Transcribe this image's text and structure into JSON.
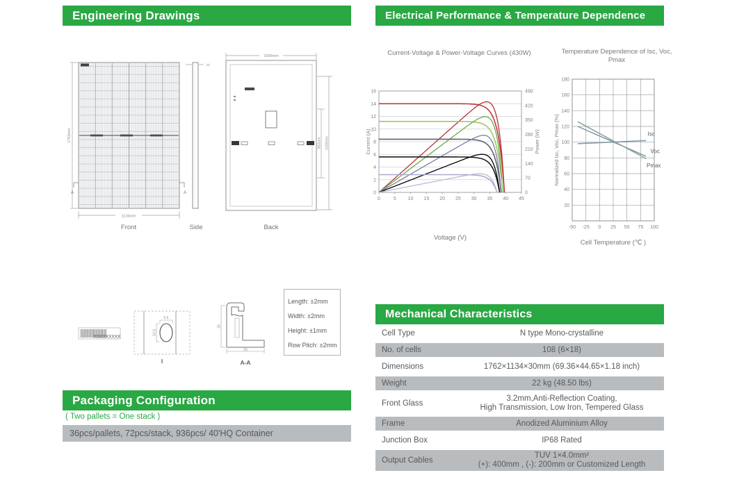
{
  "colors": {
    "accent_green": "#29a844",
    "row_gray": "#b9bcbe",
    "text_gray": "#58595b",
    "chart_text": "#808285",
    "axis_gray": "#9da1a5",
    "grid_gray": "#cdd0d2"
  },
  "sections": {
    "engineering": {
      "title": "Engineering Drawings"
    },
    "electrical": {
      "title": "Electrical Performance & Temperature Dependence"
    },
    "packaging": {
      "title": "Packaging Configuration",
      "note": "( Two pallets = One stack )",
      "detail": "36pcs/pallets, 72pcs/stack, 936pcs/ 40'HQ Container"
    },
    "mechanical": {
      "title": "Mechanical Characteristics",
      "rows": [
        {
          "label": "Cell  Type",
          "value": "N type Mono-crystalline"
        },
        {
          "label": "No. of cells",
          "value": "108 (6×18)"
        },
        {
          "label": "Dimensions",
          "value": "1762×1134×30mm (69.36×44.65×1.18 inch)"
        },
        {
          "label": "Weight",
          "value": "22 kg (48.50 lbs)"
        },
        {
          "label": "Front Glass",
          "value": "3.2mm,Anti-Reflection Coating,",
          "value2": "High Transmission, Low Iron, Tempered Glass"
        },
        {
          "label": "Frame",
          "value": "Anodized Aluminium Alloy"
        },
        {
          "label": "Junction Box",
          "value": "IP68 Rated"
        },
        {
          "label": "Output Cables",
          "value": "TUV  1×4.0mm²",
          "value2": "(+): 400mm , (-): 200mm or Customized Length"
        }
      ]
    }
  },
  "drawings": {
    "front": {
      "label": "Front",
      "height_dim": "1762mm",
      "width_dim": "1134mm",
      "section_marker": "A"
    },
    "side": {
      "label": "Side",
      "thickness_dim": "H"
    },
    "back": {
      "label": "Back",
      "top_dim": "1096mm",
      "inner_dim": "960mm",
      "outer_dim": "1400mm"
    },
    "barcode_text": "XXXXXXXXX",
    "detail_i": {
      "label": "I",
      "slot_width": "6.6",
      "slot_height": "14.5"
    },
    "section_aa": {
      "label": "A-A",
      "height_dim": "30",
      "width_dim": "33"
    },
    "tolerances": [
      "Length: ±2mm",
      "Width: ±2mm",
      "Height: ±1mm",
      "Row Pitch: ±2mm"
    ]
  },
  "chart_data": [
    {
      "type": "line",
      "title": "Current-Voltage & Power-Voltage Curves (430W)",
      "xlabel": "Voltage (V)",
      "ylabel_left": "Current (A)",
      "ylabel_right": "Power (W)",
      "xlim": [
        0,
        45
      ],
      "ylim_left": [
        0,
        16
      ],
      "ylim_right": [
        0,
        490
      ],
      "xticks": [
        0,
        5,
        10,
        15,
        20,
        25,
        30,
        35,
        40,
        45
      ],
      "yticks_left": [
        0,
        2,
        4,
        6,
        8,
        10,
        12,
        14,
        16
      ],
      "yticks_right": [
        0,
        70,
        140,
        210,
        280,
        350,
        420,
        490
      ],
      "grid": "horizontal",
      "legend": "none",
      "series": [
        {
          "isc": 14.0,
          "voc": 39.6,
          "pmax_w": 438,
          "iv_color": "#c03a3a",
          "pv_color": "#b23436"
        },
        {
          "isc": 11.2,
          "voc": 39.1,
          "pmax_w": 366,
          "iv_color": "#9cc963",
          "pv_color": "#6faa47"
        },
        {
          "isc": 8.4,
          "voc": 38.6,
          "pmax_w": 276,
          "iv_color": "#5d6078",
          "pv_color": "#7a7da5"
        },
        {
          "isc": 5.6,
          "voc": 38.1,
          "pmax_w": 184,
          "iv_color": "#1c1c1e",
          "pv_color": "#000000"
        },
        {
          "isc": 2.8,
          "voc": 37.3,
          "pmax_w": 90,
          "iv_color": "#a9abca",
          "pv_color": "#b9bbd4"
        }
      ]
    },
    {
      "type": "line",
      "title": "Temperature Dependence of Isc, Voc, Pmax",
      "xlabel": "Cell Temperature (℃ )",
      "ylabel": "Normalized Isc, Voc, Pmax (%)",
      "xlim": [
        -50,
        100
      ],
      "ylim": [
        0,
        180
      ],
      "xticks": [
        -50,
        -25,
        0,
        25,
        50,
        75,
        100
      ],
      "yticks": [
        20,
        40,
        60,
        80,
        100,
        120,
        140,
        160,
        180
      ],
      "grid": "both",
      "legend": "inline-labels",
      "series": [
        {
          "name": "Isc",
          "color": "#7d93a6",
          "points": [
            [
              -40,
              98
            ],
            [
              85,
              102
            ]
          ],
          "label_pos": [
            88,
            108
          ]
        },
        {
          "name": "Voc",
          "color": "#7d93a6",
          "points": [
            [
              -40,
              120
            ],
            [
              85,
              82
            ]
          ],
          "label_pos": [
            93,
            86
          ]
        },
        {
          "name": "Pmax",
          "color": "#89a396",
          "points": [
            [
              -40,
              126
            ],
            [
              85,
              79
            ]
          ],
          "label_pos": [
            86,
            68
          ]
        }
      ]
    }
  ]
}
